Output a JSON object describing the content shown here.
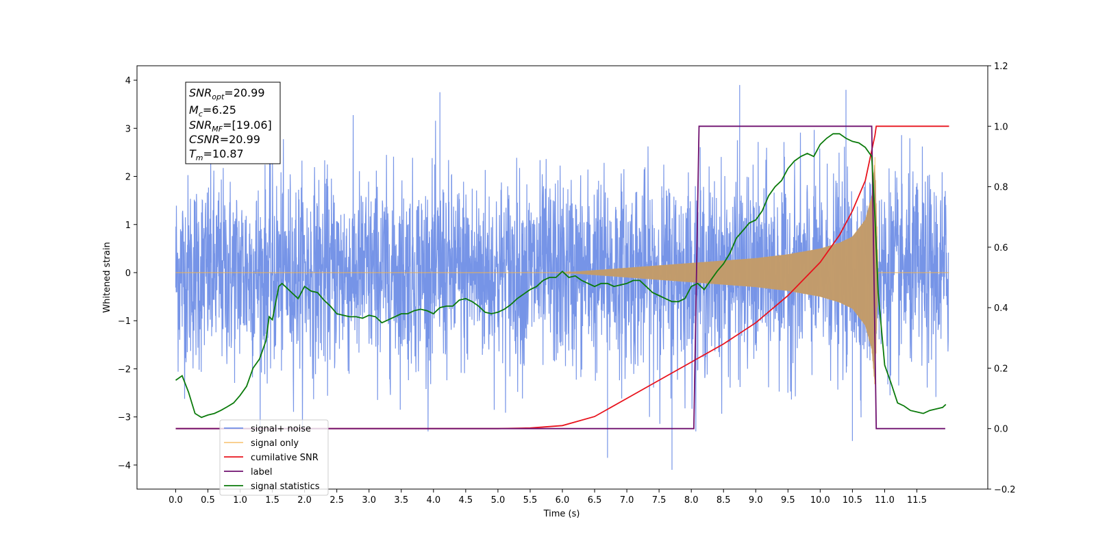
{
  "chart_data": {
    "type": "line",
    "title": "",
    "xlabel": "Time (s)",
    "ylabel": "Whitened strain",
    "y2label": "",
    "xlim": [
      -0.6,
      12.6
    ],
    "ylim": [
      -4.5,
      4.3
    ],
    "y2lim": [
      -0.2,
      1.2
    ],
    "x_ticks": [
      "0.0",
      "0.5",
      "1.0",
      "1.5",
      "2.0",
      "2.5",
      "3.0",
      "3.5",
      "4.0",
      "4.5",
      "5.0",
      "5.5",
      "6.0",
      "6.5",
      "7.0",
      "7.5",
      "8.0",
      "8.5",
      "9.0",
      "9.5",
      "10.0",
      "10.5",
      "11.0",
      "11.5"
    ],
    "y_ticks": [
      "-4",
      "-3",
      "-2",
      "-1",
      "0",
      "1",
      "2",
      "3",
      "4"
    ],
    "y2_ticks": [
      "-0.2",
      "0.0",
      "0.2",
      "0.4",
      "0.6",
      "0.8",
      "1.0",
      "1.2"
    ],
    "grid": false,
    "legend_position": "lower-left",
    "info_box": {
      "snr_opt": {
        "symbol": "SNR",
        "sub": "opt",
        "value": "=20.99"
      },
      "mc": {
        "symbol": "M",
        "sub": "c",
        "value": "=6.25"
      },
      "snr_mf": {
        "symbol": "SNR",
        "sub": "MF",
        "value": "=[19.06]"
      },
      "csnr": {
        "symbol": "CSNR",
        "value": "=20.99"
      },
      "tm": {
        "symbol": "T",
        "sub": "m",
        "value": "=10.87"
      }
    },
    "series": [
      {
        "name": "signal+ noise",
        "color": "#6f8ee6",
        "axis": "left",
        "kind": "noise",
        "x_range": [
          0.0,
          11.99
        ],
        "envelope_std": 1.0,
        "note_points": [
          [
            4.1,
            3.75
          ],
          [
            8.75,
            3.9
          ],
          [
            10.4,
            3.8
          ],
          [
            7.7,
            -4.1
          ],
          [
            6.7,
            -3.85
          ],
          [
            10.5,
            -3.5
          ]
        ]
      },
      {
        "name": "signal only",
        "color": "#f5b44a",
        "axis": "left",
        "kind": "chirp",
        "envelope": {
          "x": [
            0.0,
            6.0,
            7.0,
            8.0,
            8.5,
            9.0,
            9.5,
            10.0,
            10.3,
            10.5,
            10.7,
            10.8,
            10.85,
            10.9,
            12.0
          ],
          "amp": [
            0.0,
            0.0,
            0.1,
            0.2,
            0.25,
            0.3,
            0.38,
            0.5,
            0.62,
            0.75,
            1.1,
            1.6,
            2.4,
            0.0,
            0.0
          ]
        }
      },
      {
        "name": "cumilative SNR",
        "color": "#e8121c",
        "axis": "right",
        "x": [
          0.0,
          5.0,
          5.5,
          6.0,
          6.5,
          7.0,
          7.5,
          8.0,
          8.5,
          9.0,
          9.5,
          10.0,
          10.3,
          10.5,
          10.7,
          10.85,
          10.87,
          12.0
        ],
        "y": [
          0.0,
          0.0,
          0.002,
          0.01,
          0.04,
          0.1,
          0.16,
          0.22,
          0.28,
          0.35,
          0.44,
          0.55,
          0.64,
          0.72,
          0.82,
          0.97,
          1.0,
          1.0
        ]
      },
      {
        "name": "label",
        "color": "#6e0f6e",
        "axis": "right",
        "x": [
          0.0,
          8.04,
          8.12,
          10.8,
          10.87,
          11.94
        ],
        "y": [
          0.0,
          0.0,
          1.0,
          1.0,
          0.0,
          0.0
        ]
      },
      {
        "name": "signal statistics",
        "color": "#0a7a0a",
        "axis": "right",
        "x": [
          0.0,
          0.1,
          0.2,
          0.3,
          0.4,
          0.5,
          0.6,
          0.7,
          0.8,
          0.9,
          1.0,
          1.1,
          1.2,
          1.3,
          1.4,
          1.45,
          1.5,
          1.6,
          1.65,
          1.7,
          1.8,
          1.9,
          2.0,
          2.1,
          2.2,
          2.3,
          2.4,
          2.5,
          2.6,
          2.7,
          2.8,
          2.9,
          3.0,
          3.1,
          3.2,
          3.3,
          3.4,
          3.5,
          3.6,
          3.7,
          3.8,
          3.9,
          4.0,
          4.1,
          4.2,
          4.3,
          4.4,
          4.5,
          4.6,
          4.7,
          4.8,
          4.9,
          5.0,
          5.1,
          5.2,
          5.3,
          5.4,
          5.5,
          5.6,
          5.7,
          5.8,
          5.9,
          6.0,
          6.1,
          6.2,
          6.3,
          6.4,
          6.5,
          6.6,
          6.7,
          6.8,
          6.9,
          7.0,
          7.1,
          7.2,
          7.3,
          7.4,
          7.5,
          7.6,
          7.7,
          7.8,
          7.9,
          8.0,
          8.1,
          8.2,
          8.3,
          8.4,
          8.5,
          8.6,
          8.7,
          8.8,
          8.9,
          9.0,
          9.1,
          9.2,
          9.3,
          9.4,
          9.5,
          9.6,
          9.7,
          9.8,
          9.9,
          10.0,
          10.1,
          10.2,
          10.3,
          10.4,
          10.5,
          10.6,
          10.7,
          10.8,
          10.85,
          10.9,
          11.0,
          11.1,
          11.2,
          11.3,
          11.4,
          11.5,
          11.6,
          11.7,
          11.8,
          11.9,
          11.95
        ],
        "y": [
          0.16,
          0.175,
          0.12,
          0.05,
          0.037,
          0.045,
          0.05,
          0.06,
          0.072,
          0.085,
          0.11,
          0.14,
          0.2,
          0.23,
          0.29,
          0.37,
          0.36,
          0.47,
          0.48,
          0.47,
          0.45,
          0.43,
          0.47,
          0.455,
          0.45,
          0.425,
          0.405,
          0.38,
          0.375,
          0.37,
          0.37,
          0.365,
          0.375,
          0.37,
          0.35,
          0.36,
          0.37,
          0.38,
          0.38,
          0.39,
          0.395,
          0.39,
          0.38,
          0.4,
          0.405,
          0.405,
          0.425,
          0.43,
          0.42,
          0.405,
          0.385,
          0.38,
          0.385,
          0.395,
          0.41,
          0.43,
          0.445,
          0.46,
          0.47,
          0.49,
          0.5,
          0.5,
          0.52,
          0.5,
          0.505,
          0.49,
          0.48,
          0.47,
          0.48,
          0.48,
          0.47,
          0.475,
          0.48,
          0.49,
          0.49,
          0.47,
          0.45,
          0.44,
          0.43,
          0.42,
          0.42,
          0.43,
          0.47,
          0.48,
          0.46,
          0.49,
          0.52,
          0.545,
          0.58,
          0.63,
          0.655,
          0.68,
          0.69,
          0.72,
          0.77,
          0.8,
          0.82,
          0.86,
          0.885,
          0.9,
          0.91,
          0.9,
          0.94,
          0.96,
          0.975,
          0.975,
          0.96,
          0.95,
          0.945,
          0.93,
          0.9,
          0.7,
          0.45,
          0.21,
          0.15,
          0.085,
          0.075,
          0.06,
          0.055,
          0.05,
          0.06,
          0.065,
          0.07,
          0.08
        ]
      }
    ]
  }
}
